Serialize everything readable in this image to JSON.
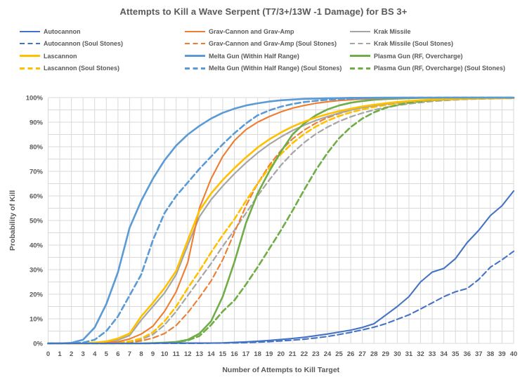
{
  "title": "Attempts to Kill a Wave Serpent (T7/3+/13W -1 Damage) for BS 3+",
  "axes": {
    "x_title": "Number of Attempts to Kill Target",
    "y_title": "Probability of Kill",
    "x_ticks": [
      "0",
      "1",
      "2",
      "3",
      "4",
      "5",
      "6",
      "7",
      "8",
      "9",
      "10",
      "11",
      "12",
      "13",
      "14",
      "15",
      "16",
      "17",
      "18",
      "19",
      "20",
      "21",
      "22",
      "23",
      "24",
      "25",
      "26",
      "27",
      "28",
      "29",
      "30",
      "31",
      "32",
      "33",
      "34",
      "35",
      "36",
      "37",
      "38",
      "39",
      "40"
    ],
    "y_ticks": [
      "0%",
      "10%",
      "20%",
      "30%",
      "40%",
      "50%",
      "60%",
      "70%",
      "80%",
      "90%",
      "100%"
    ]
  },
  "colors": {
    "text": "#595959",
    "grid": "#d9d9d9",
    "autocannon": "#4472c4",
    "grav": "#ed7d31",
    "krak": "#a5a5a5",
    "lascannon": "#ffc000",
    "melta": "#5b9bd5",
    "plasma": "#70ad47"
  },
  "chart_data": {
    "type": "line",
    "title": "Attempts to Kill a Wave Serpent (T7/3+/13W -1 Damage) for BS 3+",
    "xlabel": "Number of Attempts to Kill Target",
    "ylabel": "Probability of Kill",
    "xlim": [
      0,
      40
    ],
    "ylim_percent": [
      0,
      100
    ],
    "x_major_grid": 1,
    "y_major_grid": 10,
    "y_minor_grid": 5,
    "grid": true,
    "legend_position": "top",
    "x": [
      0,
      1,
      2,
      3,
      4,
      5,
      6,
      7,
      8,
      9,
      10,
      11,
      12,
      13,
      14,
      15,
      16,
      17,
      18,
      19,
      20,
      21,
      22,
      23,
      24,
      25,
      26,
      27,
      28,
      29,
      30,
      31,
      32,
      33,
      34,
      35,
      36,
      37,
      38,
      39,
      40
    ],
    "series": [
      {
        "name": "Autocannon",
        "color": "#4472c4",
        "dash": false,
        "w": 2.1,
        "values": [
          0,
          0,
          0,
          0,
          0,
          0,
          0,
          0,
          0,
          0,
          0.1,
          0.1,
          0.1,
          0.1,
          0.1,
          0.2,
          0.4,
          0.6,
          0.9,
          1.2,
          1.6,
          2,
          2.5,
          3.1,
          3.8,
          4.6,
          5.4,
          6.5,
          8,
          11.5,
          15,
          19,
          25,
          29,
          30.5,
          34.5,
          41,
          46,
          52,
          56,
          62
        ]
      },
      {
        "name": "Grav-Cannon and Grav-Amp",
        "color": "#ed7d31",
        "dash": false,
        "w": 2.1,
        "values": [
          0,
          0,
          0,
          0,
          0.1,
          0.2,
          0.7,
          1.8,
          3.8,
          7,
          13,
          21,
          33,
          55,
          67,
          76,
          82.5,
          87,
          90,
          92.3,
          94.2,
          95.7,
          96.8,
          97.7,
          98.3,
          98.8,
          99.1,
          99.4,
          99.6,
          99.7,
          99.8,
          99.85,
          99.9,
          99.95,
          100,
          100,
          100,
          100,
          100,
          100,
          100
        ]
      },
      {
        "name": "Krak Missile",
        "color": "#a5a5a5",
        "dash": false,
        "w": 2.2,
        "values": [
          0,
          0,
          0,
          0,
          0.2,
          0.6,
          1.4,
          3.2,
          9.5,
          15,
          20.5,
          28,
          40,
          51.5,
          58.5,
          64,
          69,
          73.5,
          77.5,
          81,
          84,
          86.6,
          88.8,
          90.7,
          92.3,
          93.7,
          94.9,
          95.9,
          96.7,
          97.4,
          97.9,
          98.4,
          98.7,
          99,
          99.2,
          99.4,
          99.5,
          99.6,
          99.7,
          99.75,
          99.8
        ]
      },
      {
        "name": "Autocannon (Soul Stones)",
        "color": "#4472c4",
        "dash": true,
        "w": 2.1,
        "values": [
          0,
          0,
          0,
          0,
          0,
          0,
          0,
          0,
          0,
          0,
          0,
          0,
          0,
          0,
          0.1,
          0.1,
          0.2,
          0.3,
          0.5,
          0.7,
          1,
          1.3,
          1.7,
          2.2,
          2.8,
          3.6,
          4.5,
          5.5,
          6.6,
          8,
          9.8,
          11.6,
          14,
          16.5,
          19,
          21,
          22.3,
          26,
          31,
          34,
          37.5
        ]
      },
      {
        "name": "Grav-Cannon and Grav-Amp (Soul Stones)",
        "color": "#ed7d31",
        "dash": true,
        "w": 2.1,
        "values": [
          0,
          0,
          0,
          0,
          0,
          0.1,
          0.2,
          0.4,
          1,
          2.2,
          4,
          7.3,
          12.5,
          18.7,
          25.4,
          34,
          45,
          56,
          65,
          72.5,
          78.5,
          83.2,
          86.8,
          89.6,
          91.8,
          93.5,
          94.9,
          96,
          96.9,
          97.6,
          98.2,
          98.6,
          98.9,
          99.2,
          99.4,
          99.5,
          99.65,
          99.7,
          99.8,
          99.8,
          99.85
        ]
      },
      {
        "name": "Krak Missile (Soul Stones)",
        "color": "#a5a5a5",
        "dash": true,
        "w": 2.2,
        "values": [
          0,
          0,
          0,
          0,
          0,
          0,
          0.2,
          0.6,
          1.6,
          3.6,
          7.5,
          13,
          19.5,
          26,
          32.5,
          39.5,
          46,
          53,
          60,
          66.5,
          72.5,
          77.5,
          81.7,
          85.2,
          88,
          90.3,
          92.2,
          93.7,
          95,
          96,
          96.8,
          97.5,
          98,
          98.5,
          98.8,
          99.1,
          99.3,
          99.45,
          99.55,
          99.65,
          99.7
        ]
      },
      {
        "name": "Lascannon",
        "color": "#ffc000",
        "dash": false,
        "w": 2.6,
        "values": [
          0,
          0,
          0,
          0,
          0.3,
          0.8,
          2,
          4,
          11,
          16.5,
          22.5,
          29.5,
          42,
          54,
          61,
          66.5,
          71.3,
          75.7,
          79.7,
          83,
          85.8,
          88.2,
          90.2,
          91.9,
          93.3,
          94.5,
          95.5,
          96.4,
          97.1,
          97.7,
          98.2,
          98.6,
          98.9,
          99.2,
          99.4,
          99.5,
          99.6,
          99.7,
          99.75,
          99.8,
          99.85
        ]
      },
      {
        "name": "Melta Gun (Within Half Range)",
        "color": "#5b9bd5",
        "dash": false,
        "w": 2.6,
        "values": [
          0,
          0,
          0.2,
          1.5,
          6.5,
          16,
          29,
          47,
          58,
          67,
          74.5,
          80.5,
          85,
          88.5,
          91.5,
          93.8,
          95.5,
          96.8,
          97.7,
          98.4,
          98.9,
          99.2,
          99.5,
          99.6,
          99.75,
          99.8,
          99.9,
          99.9,
          99.95,
          100,
          100,
          100,
          100,
          100,
          100,
          100,
          100,
          100,
          100,
          100,
          100
        ]
      },
      {
        "name": "Plasma Gun (RF, Overcharge)",
        "color": "#70ad47",
        "dash": false,
        "w": 2.6,
        "values": [
          0,
          0,
          0,
          0,
          0,
          0,
          0,
          0,
          0,
          0.1,
          0.3,
          0.6,
          1.5,
          4,
          9,
          19,
          33,
          49,
          61,
          70,
          78,
          85,
          89.5,
          92.8,
          95.2,
          96.8,
          97.9,
          98.6,
          99.1,
          99.4,
          99.6,
          99.75,
          99.85,
          99.9,
          99.95,
          100,
          100,
          100,
          100,
          100,
          100
        ]
      },
      {
        "name": "Lascannon (Soul Stones)",
        "color": "#ffc000",
        "dash": true,
        "w": 2.6,
        "values": [
          0,
          0,
          0,
          0,
          0,
          0,
          0.3,
          0.8,
          2,
          4.5,
          9,
          15,
          22.5,
          29.5,
          37,
          44,
          50.5,
          58,
          65,
          71.5,
          77,
          81.5,
          85.2,
          88.2,
          90.6,
          92.5,
          94,
          95.2,
          96.2,
          97,
          97.6,
          98.1,
          98.5,
          98.9,
          99.1,
          99.3,
          99.5,
          99.6,
          99.7,
          99.75,
          99.8
        ]
      },
      {
        "name": "Melta Gun (Within Half Range) (Soul Stones)",
        "color": "#5b9bd5",
        "dash": true,
        "w": 2.6,
        "values": [
          0,
          0,
          0,
          0.3,
          1.5,
          5,
          11,
          19.5,
          28,
          42,
          53,
          60,
          65.5,
          71,
          76,
          81,
          85.5,
          89.5,
          92.8,
          94.8,
          96.3,
          97.4,
          98.2,
          98.7,
          99.1,
          99.4,
          99.6,
          99.7,
          99.8,
          99.85,
          99.9,
          100,
          100,
          100,
          100,
          100,
          100,
          100,
          100,
          100,
          100
        ]
      },
      {
        "name": "Plasma Gun (RF, Overcharge) (Soul Stones)",
        "color": "#70ad47",
        "dash": true,
        "w": 2.6,
        "values": [
          0,
          0,
          0,
          0,
          0,
          0,
          0,
          0,
          0,
          0,
          0.2,
          0.5,
          1.2,
          3,
          7.5,
          13,
          17.5,
          24,
          31,
          38.5,
          46,
          54,
          62.5,
          70.5,
          77.5,
          83.5,
          88,
          91.5,
          94,
          95.8,
          97,
          97.9,
          98.5,
          99,
          99.3,
          99.5,
          99.6,
          99.7,
          99.8,
          99.85,
          99.9
        ]
      }
    ]
  }
}
